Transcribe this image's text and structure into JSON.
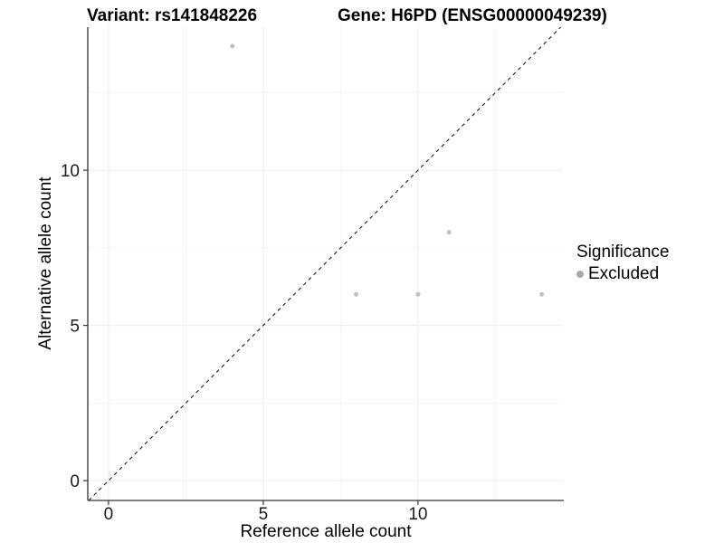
{
  "header": {
    "variant_title": "Variant: rs141848226",
    "gene_title": "Gene: H6PD (ENSG00000049239)"
  },
  "chart_data": {
    "type": "scatter",
    "title": "",
    "xlabel": "Reference allele count",
    "ylabel": "Alternative allele count",
    "xlim": [
      -0.67,
      14.71
    ],
    "ylim": [
      -0.64,
      14.61
    ],
    "x_major_ticks": [
      0,
      5,
      10
    ],
    "y_major_ticks": [
      0,
      5,
      10
    ],
    "x_minor_gridlines": [
      2.5,
      7.5,
      12.5
    ],
    "y_minor_gridlines": [
      2.5,
      7.5,
      12.5
    ],
    "grid": "major and minor gridlines on white background",
    "legend_position": "right",
    "series": [
      {
        "name": "Excluded",
        "color": "#bfbfbf",
        "point_radius": 2.5,
        "points": [
          {
            "x": 4,
            "y": 14
          },
          {
            "x": 8,
            "y": 6
          },
          {
            "x": 10,
            "y": 6
          },
          {
            "x": 11,
            "y": 8
          },
          {
            "x": 14,
            "y": 6
          }
        ]
      }
    ],
    "reference_line": {
      "equation": "y = x",
      "style": "dashed",
      "color": "#1a1a1a"
    }
  },
  "legend": {
    "title": "Significance",
    "items": [
      {
        "label": "Excluded",
        "color": "#a8a8a8"
      }
    ]
  },
  "colors": {
    "background": "#ffffff",
    "grid_major": "#ececec",
    "grid_minor": "#f4f4f4",
    "axis_line": "#333333",
    "tick_mark": "#333333",
    "tick_label": "#1a1a1a"
  }
}
